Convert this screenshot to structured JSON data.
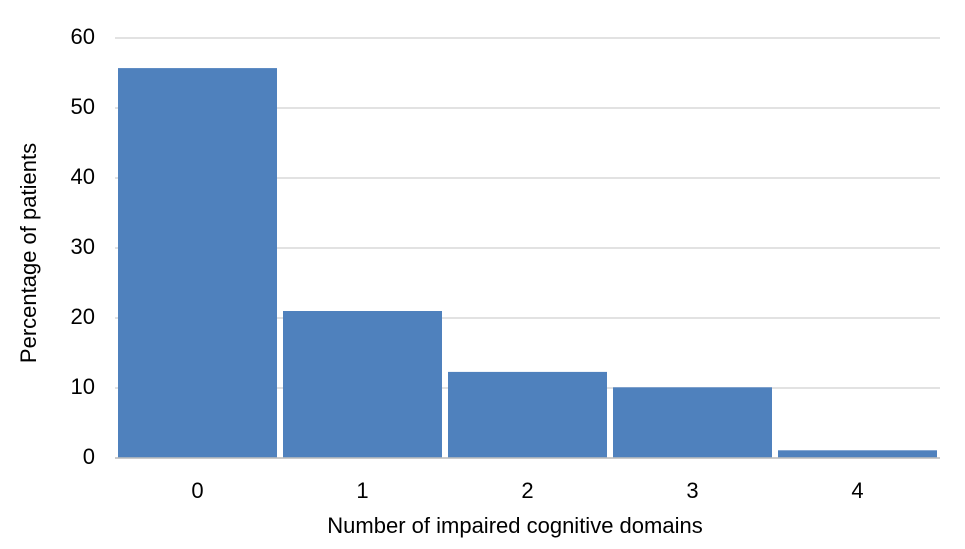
{
  "chart_data": {
    "type": "bar",
    "x_label": "Number of impaired cognitive domains",
    "y_label": "Percentage of patients",
    "categories": [
      "0",
      "1",
      "2",
      "3",
      "4"
    ],
    "values": [
      55.7,
      21.0,
      12.3,
      10.1,
      1.1
    ],
    "color": "#4f81bd",
    "ylim": [
      0,
      60
    ],
    "yticks": [
      0,
      10,
      20,
      30,
      40,
      50,
      60
    ],
    "grid": true
  }
}
